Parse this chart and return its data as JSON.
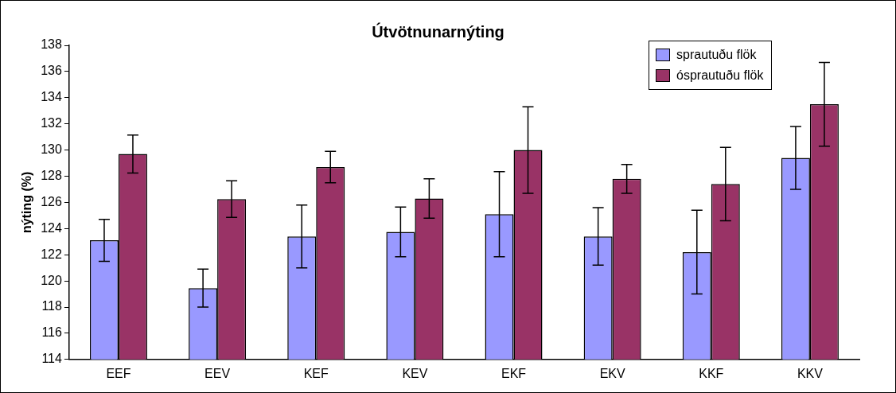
{
  "chart_data": {
    "type": "bar",
    "title": "Útvötnunarnýting",
    "ylabel": "nýting (%)",
    "categories": [
      "EEF",
      "EEV",
      "KEF",
      "KEV",
      "EKF",
      "EKV",
      "KKF",
      "KKV"
    ],
    "series": [
      {
        "name": "sprautuðu flök",
        "color": "#9999ff",
        "values": [
          123.1,
          119.45,
          123.4,
          123.75,
          125.1,
          123.4,
          122.2,
          129.4
        ],
        "errors": [
          1.6,
          1.45,
          2.4,
          1.9,
          3.25,
          2.2,
          3.2,
          2.4
        ]
      },
      {
        "name": "ósprautuðu flök",
        "color": "#993366",
        "values": [
          129.7,
          126.25,
          128.7,
          126.3,
          130.0,
          127.8,
          127.4,
          133.5
        ],
        "errors": [
          1.45,
          1.4,
          1.2,
          1.5,
          3.3,
          1.1,
          2.8,
          3.2
        ]
      }
    ],
    "ylim": [
      114,
      138
    ],
    "yticks": [
      114,
      116,
      118,
      120,
      122,
      124,
      126,
      128,
      130,
      132,
      134,
      136,
      138
    ],
    "grid": false,
    "legend": "top right"
  }
}
